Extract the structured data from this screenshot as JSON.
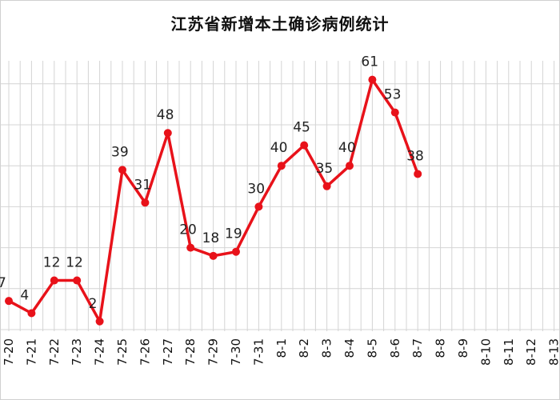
{
  "chart_data": {
    "type": "line",
    "title": "江苏省新增本土确诊病例统计",
    "xlabel": "",
    "ylabel": "",
    "categories": [
      "7-20",
      "7-21",
      "7-22",
      "7-23",
      "7-24",
      "7-25",
      "7-26",
      "7-27",
      "7-28",
      "7-29",
      "7-30",
      "7-31",
      "8-1",
      "8-2",
      "8-3",
      "8-4",
      "8-5",
      "8-6",
      "8-7",
      "8-8",
      "8-9",
      "8-10",
      "8-11",
      "8-12",
      "8-13"
    ],
    "series": [
      {
        "values": [
          7,
          4,
          12,
          12,
          2,
          39,
          31,
          48,
          20,
          18,
          19,
          30,
          40,
          45,
          35,
          40,
          61,
          53,
          38,
          null,
          null,
          null,
          null,
          null,
          null
        ]
      }
    ],
    "ylim": [
      -2,
      70
    ],
    "grid": true,
    "legend": "none",
    "line_color": "#e8121a"
  }
}
